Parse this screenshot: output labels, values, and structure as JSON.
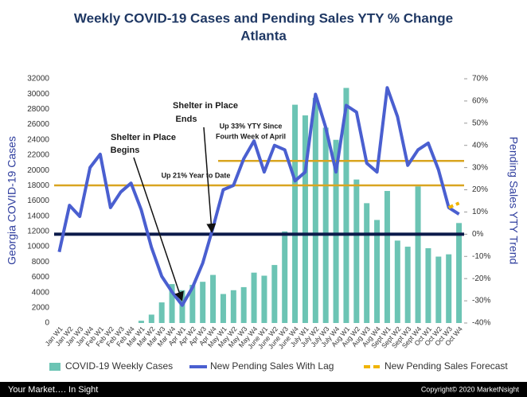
{
  "chart_data": {
    "type": "bar_line",
    "title": "Weekly COVID-19 Cases and Pending Sales YTY % Change",
    "subtitle": "Atlanta",
    "ylabel": "Georgia COVID-19 Cases",
    "y2label": "Pending Sales YTY  Trend",
    "categories": [
      "Jan W1",
      "Jan W2",
      "Jan W3",
      "Jan W4",
      "Feb W1",
      "Feb W2",
      "Feb W3",
      "Feb W4",
      "Mar W1",
      "Mar W2",
      "Mar W3",
      "Mar W4",
      "Apr W1",
      "Apr W2",
      "Apr W3",
      "Apr W4",
      "May W1",
      "May W2",
      "May W3",
      "May W4",
      "June W1",
      "June W2",
      "June W3",
      "June W4",
      "July W1",
      "July W2",
      "July W3",
      "July W4",
      "Aug W1",
      "Aug W2",
      "Aug W3",
      "Aug W4",
      "Sept W1",
      "Sept W2",
      "Sept W3",
      "Sept W4",
      "Oct W1",
      "Oct W2",
      "Oct W3",
      "Oct W4"
    ],
    "series": [
      {
        "name": "COVID-19 Weekly Cases",
        "type": "bar",
        "color": "#6cc4b4",
        "values": [
          0,
          0,
          0,
          0,
          0,
          0,
          0,
          0,
          300,
          1100,
          2700,
          5100,
          4300,
          5000,
          5400,
          6300,
          3800,
          4300,
          4700,
          6600,
          6200,
          7600,
          12000,
          28600,
          27200,
          29500,
          25600,
          24000,
          30800,
          18800,
          15700,
          13500,
          17300,
          10800,
          10000,
          17900,
          9800,
          8700,
          9000,
          13100
        ]
      },
      {
        "name": "New Pending Sales With Lag",
        "type": "line",
        "axis": "y2",
        "color": "#4a5fd0",
        "values": [
          -8,
          13,
          8,
          30,
          36,
          12,
          19,
          23,
          11,
          -6,
          -19,
          -26,
          -32,
          -24,
          -13,
          3,
          20,
          22,
          34,
          42,
          28,
          40,
          38,
          24,
          28,
          63,
          48,
          28,
          58,
          55,
          32,
          28,
          66,
          53,
          31,
          38,
          41,
          29,
          12,
          9
        ]
      },
      {
        "name": "New Pending Sales Forecast",
        "type": "dashed",
        "axis": "y2",
        "color": "#f0b400",
        "values": [
          null,
          null,
          null,
          null,
          null,
          null,
          null,
          null,
          null,
          null,
          null,
          null,
          null,
          null,
          null,
          null,
          null,
          null,
          null,
          null,
          null,
          null,
          null,
          null,
          null,
          null,
          null,
          null,
          null,
          null,
          null,
          null,
          null,
          null,
          null,
          null,
          null,
          null,
          12,
          14
        ]
      }
    ],
    "reference_lines": [
      {
        "value": 0,
        "axis": "y2",
        "color": "#0b1a4a",
        "from": "Jan W1"
      },
      {
        "value": 22,
        "axis": "y2",
        "color": "#d9a520",
        "from": "Jan W1"
      },
      {
        "value": 33,
        "axis": "y2",
        "color": "#d9a520",
        "from": "May W1"
      }
    ],
    "annotations": [
      "Shelter in Place",
      "Begins",
      "Shelter in Place",
      "Ends",
      "Up 21% Year  to Date",
      "Up 33% YTY Since",
      "Fourth Week of April"
    ],
    "ylim": [
      0,
      32000
    ],
    "yticks": [
      0,
      2000,
      4000,
      6000,
      8000,
      10000,
      12000,
      14000,
      16000,
      18000,
      20000,
      22000,
      24000,
      26000,
      28000,
      30000,
      32000
    ],
    "y2lim": [
      -40,
      70
    ],
    "y2ticks": [
      {
        "value": -40,
        "label": "-40%"
      },
      {
        "value": -30,
        "label": "-30%"
      },
      {
        "value": -20,
        "label": "-20%"
      },
      {
        "value": -10,
        "label": "-10%"
      },
      {
        "value": 0,
        "label": "0%"
      },
      {
        "value": 10,
        "label": "10%"
      },
      {
        "value": 20,
        "label": "20%"
      },
      {
        "value": 30,
        "label": "30%"
      },
      {
        "value": 40,
        "label": "40%"
      },
      {
        "value": 50,
        "label": "50%"
      },
      {
        "value": 60,
        "label": "60%"
      },
      {
        "value": 70,
        "label": "70%"
      }
    ],
    "footer_left": "Your Market….  In Sight",
    "footer_right": "Copyright© 2020 MarketNsight"
  }
}
